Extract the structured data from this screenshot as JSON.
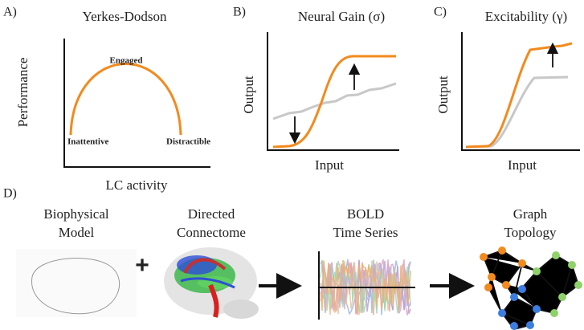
{
  "panels": [
    {
      "label": "A)",
      "title": "Yerkes-Dodson",
      "y_label": "Performance",
      "x_label": "LC activity",
      "annotations": [
        "Engaged",
        "Inattentive",
        "Distractible"
      ]
    },
    {
      "label": "B)",
      "title": "Neural Gain (σ)",
      "y_label": "Output",
      "x_label": "Input"
    },
    {
      "label": "C)",
      "title": "Excitability (γ)",
      "y_label": "Output",
      "x_label": "Input"
    }
  ],
  "pipeline": {
    "label": "D)",
    "operator": "+",
    "steps": [
      {
        "title": [
          "Biophysical",
          "Model"
        ]
      },
      {
        "title": [
          "Directed",
          "Connectome"
        ]
      },
      {
        "title": [
          "BOLD",
          "Time Series"
        ]
      },
      {
        "title": [
          "Graph",
          "Topology"
        ]
      }
    ]
  }
}
